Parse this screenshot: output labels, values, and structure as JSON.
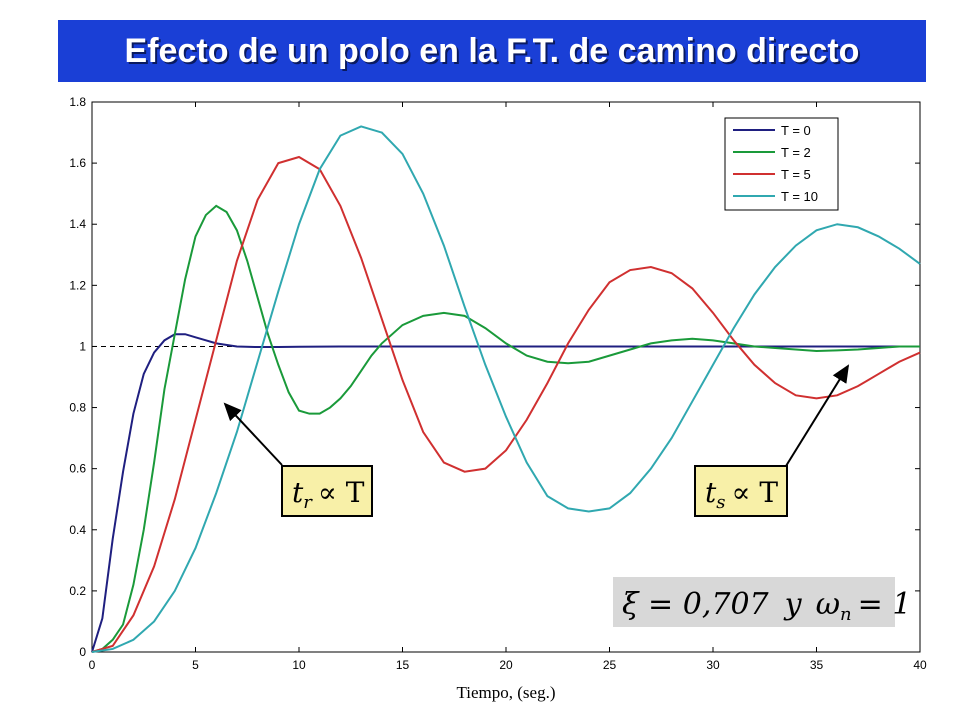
{
  "page": {
    "title": "Efecto de un polo en la F.T. de camino directo",
    "title_bg": "#1a3fd6"
  },
  "chart_data": {
    "type": "line",
    "title": "",
    "xlabel": "Tiempo, (seg.)",
    "ylabel": "",
    "xlim": [
      0,
      40
    ],
    "ylim": [
      0,
      1.8
    ],
    "xticks": [
      "0",
      "5",
      "10",
      "15",
      "20",
      "25",
      "30",
      "35",
      "40"
    ],
    "yticks": [
      "0",
      "0.2",
      "0.4",
      "0.6",
      "0.8",
      "1",
      "1.2",
      "1.4",
      "1.6",
      "1.8"
    ],
    "grid": false,
    "legend_position": "top-right",
    "reference_line": {
      "y": 1,
      "x_end": 7.0,
      "style": "dashed"
    },
    "series": [
      {
        "name": "T = 0",
        "color": "#1f1f80",
        "x": [
          0,
          0.5,
          1,
          1.5,
          2,
          2.5,
          3,
          3.5,
          4,
          4.5,
          5,
          5.5,
          6,
          7,
          8,
          9,
          10,
          12,
          15,
          20,
          25,
          30,
          35,
          40
        ],
        "y": [
          0,
          0.11,
          0.37,
          0.59,
          0.78,
          0.91,
          0.98,
          1.02,
          1.04,
          1.04,
          1.03,
          1.02,
          1.01,
          1.0,
          0.998,
          0.998,
          0.999,
          1.0,
          1.0,
          1.0,
          1.0,
          1.0,
          1.0,
          1.0
        ]
      },
      {
        "name": "T = 2",
        "color": "#1a9a3a",
        "x": [
          0,
          0.5,
          1,
          1.5,
          2,
          2.5,
          3,
          3.5,
          4,
          4.5,
          5,
          5.5,
          6,
          6.5,
          7,
          7.5,
          8,
          8.5,
          9,
          9.5,
          10,
          10.5,
          11,
          11.5,
          12,
          12.5,
          13,
          13.5,
          14,
          15,
          16,
          17,
          18,
          18.5,
          19,
          20,
          21,
          22,
          23,
          24,
          25,
          26,
          27,
          28,
          29,
          30,
          31,
          32,
          33,
          34,
          35,
          36,
          37,
          38,
          39,
          40
        ],
        "y": [
          0,
          0.01,
          0.04,
          0.09,
          0.22,
          0.4,
          0.62,
          0.86,
          1.04,
          1.22,
          1.36,
          1.43,
          1.46,
          1.44,
          1.38,
          1.28,
          1.16,
          1.04,
          0.94,
          0.85,
          0.79,
          0.78,
          0.78,
          0.8,
          0.83,
          0.87,
          0.92,
          0.97,
          1.01,
          1.07,
          1.1,
          1.11,
          1.1,
          1.08,
          1.06,
          1.01,
          0.97,
          0.95,
          0.945,
          0.95,
          0.97,
          0.99,
          1.01,
          1.02,
          1.025,
          1.02,
          1.01,
          1.0,
          0.995,
          0.99,
          0.985,
          0.987,
          0.99,
          0.995,
          1.0,
          1.0
        ]
      },
      {
        "name": "T = 5",
        "color": "#d03030",
        "x": [
          0,
          1,
          2,
          3,
          4,
          5,
          6,
          7,
          8,
          9,
          10,
          11,
          12,
          13,
          14,
          15,
          16,
          17,
          18,
          19,
          20,
          21,
          22,
          23,
          24,
          25,
          26,
          27,
          28,
          29,
          30,
          31,
          32,
          33,
          34,
          35,
          36,
          37,
          38,
          39,
          40
        ],
        "y": [
          0,
          0.02,
          0.12,
          0.28,
          0.5,
          0.76,
          1.02,
          1.28,
          1.48,
          1.6,
          1.62,
          1.58,
          1.46,
          1.29,
          1.09,
          0.89,
          0.72,
          0.62,
          0.59,
          0.6,
          0.66,
          0.76,
          0.88,
          1.01,
          1.12,
          1.21,
          1.25,
          1.26,
          1.24,
          1.19,
          1.11,
          1.02,
          0.94,
          0.88,
          0.84,
          0.83,
          0.84,
          0.87,
          0.91,
          0.95,
          0.98
        ]
      },
      {
        "name": "T = 10",
        "color": "#30a8b0",
        "x": [
          0,
          1,
          2,
          3,
          4,
          5,
          6,
          7,
          8,
          9,
          10,
          11,
          12,
          13,
          14,
          15,
          16,
          17,
          18,
          19,
          20,
          21,
          22,
          23,
          24,
          25,
          26,
          27,
          28,
          29,
          30,
          31,
          32,
          33,
          34,
          35,
          36,
          37,
          38,
          39,
          40
        ],
        "y": [
          0,
          0.01,
          0.04,
          0.1,
          0.2,
          0.34,
          0.52,
          0.72,
          0.95,
          1.18,
          1.4,
          1.58,
          1.69,
          1.72,
          1.7,
          1.63,
          1.5,
          1.33,
          1.13,
          0.94,
          0.77,
          0.62,
          0.51,
          0.47,
          0.46,
          0.47,
          0.52,
          0.6,
          0.7,
          0.82,
          0.94,
          1.06,
          1.17,
          1.26,
          1.33,
          1.38,
          1.4,
          1.39,
          1.36,
          1.32,
          1.27
        ]
      }
    ]
  },
  "annotations": {
    "rise_time": {
      "label": "t_r ∝ T",
      "t": "t",
      "sub": "r",
      "rel": "∝ T",
      "bg": "#f8f0a8"
    },
    "settling_time": {
      "label": "t_s ∝ T",
      "t": "t",
      "sub": "s",
      "rel": "∝ T",
      "bg": "#f8f0a8"
    },
    "params": {
      "label": "ξ = 0,707 y ω_n = 1",
      "xi": "ξ = 0,707",
      "y": "y",
      "omega": "ω",
      "sub": "n",
      "eq": "= 1",
      "bg": "#d8d8d8"
    }
  }
}
